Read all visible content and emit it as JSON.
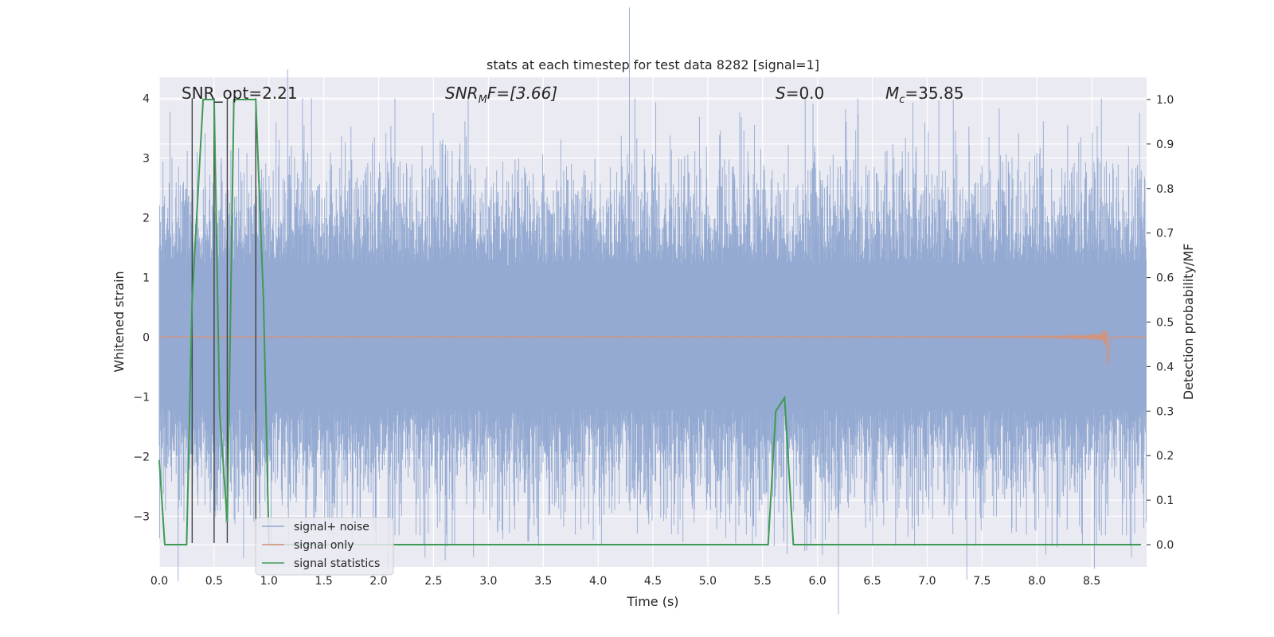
{
  "chart_data": {
    "type": "line",
    "title": "stats at each timestep for test data 8282 [signal=1]",
    "xlabel": "Time (s)",
    "ylabel": "Whitened strain",
    "y2label": "Detection probability/MF",
    "xlim": [
      0.0,
      9.0
    ],
    "ylim": [
      -3.85,
      4.35
    ],
    "y2lim": [
      -0.05,
      1.05
    ],
    "xticks": [
      "0.0",
      "0.5",
      "1.0",
      "1.5",
      "2.0",
      "2.5",
      "3.0",
      "3.5",
      "4.0",
      "4.5",
      "5.0",
      "5.5",
      "6.0",
      "6.5",
      "7.0",
      "7.5",
      "8.0",
      "8.5"
    ],
    "yticks": [
      "−3",
      "−2",
      "−1",
      "0",
      "1",
      "2",
      "3",
      "4"
    ],
    "y2ticks": [
      "0.0",
      "0.1",
      "0.2",
      "0.3",
      "0.4",
      "0.5",
      "0.6",
      "0.7",
      "0.8",
      "0.9",
      "1.0"
    ],
    "grid": true,
    "legend_placement": "lower-left",
    "annotations": {
      "snr_opt": "SNR_opt=2.21",
      "snr_mf_main": "SNR",
      "snr_mf_sub": "M",
      "snr_mf_tail": "F=[3.66]",
      "s_main": "S",
      "s_tail": "=0.0",
      "mc_main": "M",
      "mc_sub": "c",
      "mc_tail": "=35.85"
    },
    "series": [
      {
        "name": "signal+ noise",
        "color": "#8fa6d0",
        "kind": "noise",
        "envelope_typical": 1.8,
        "envelope_peak": 4.0
      },
      {
        "name": "signal only",
        "color": "#d4937a",
        "kind": "chirp",
        "x_merger": 8.65,
        "peak_amplitude": 0.5
      },
      {
        "name": "signal statistics",
        "color": "#3f9a55",
        "axis": "right",
        "x": [
          0.0,
          0.05,
          0.25,
          0.3,
          0.4,
          0.5,
          0.55,
          0.62,
          0.68,
          0.72,
          0.8,
          0.88,
          0.95,
          1.0,
          5.55,
          5.62,
          5.7,
          5.78,
          8.95
        ],
        "y": [
          0.19,
          0.0,
          0.0,
          0.55,
          1.0,
          1.0,
          0.3,
          0.05,
          1.0,
          1.0,
          1.0,
          1.0,
          0.55,
          0.0,
          0.0,
          0.3,
          0.33,
          0.0,
          0.0
        ]
      }
    ],
    "vertical_markers": {
      "color": "#404040",
      "x": [
        0.3,
        0.5,
        0.62,
        0.88
      ]
    }
  }
}
